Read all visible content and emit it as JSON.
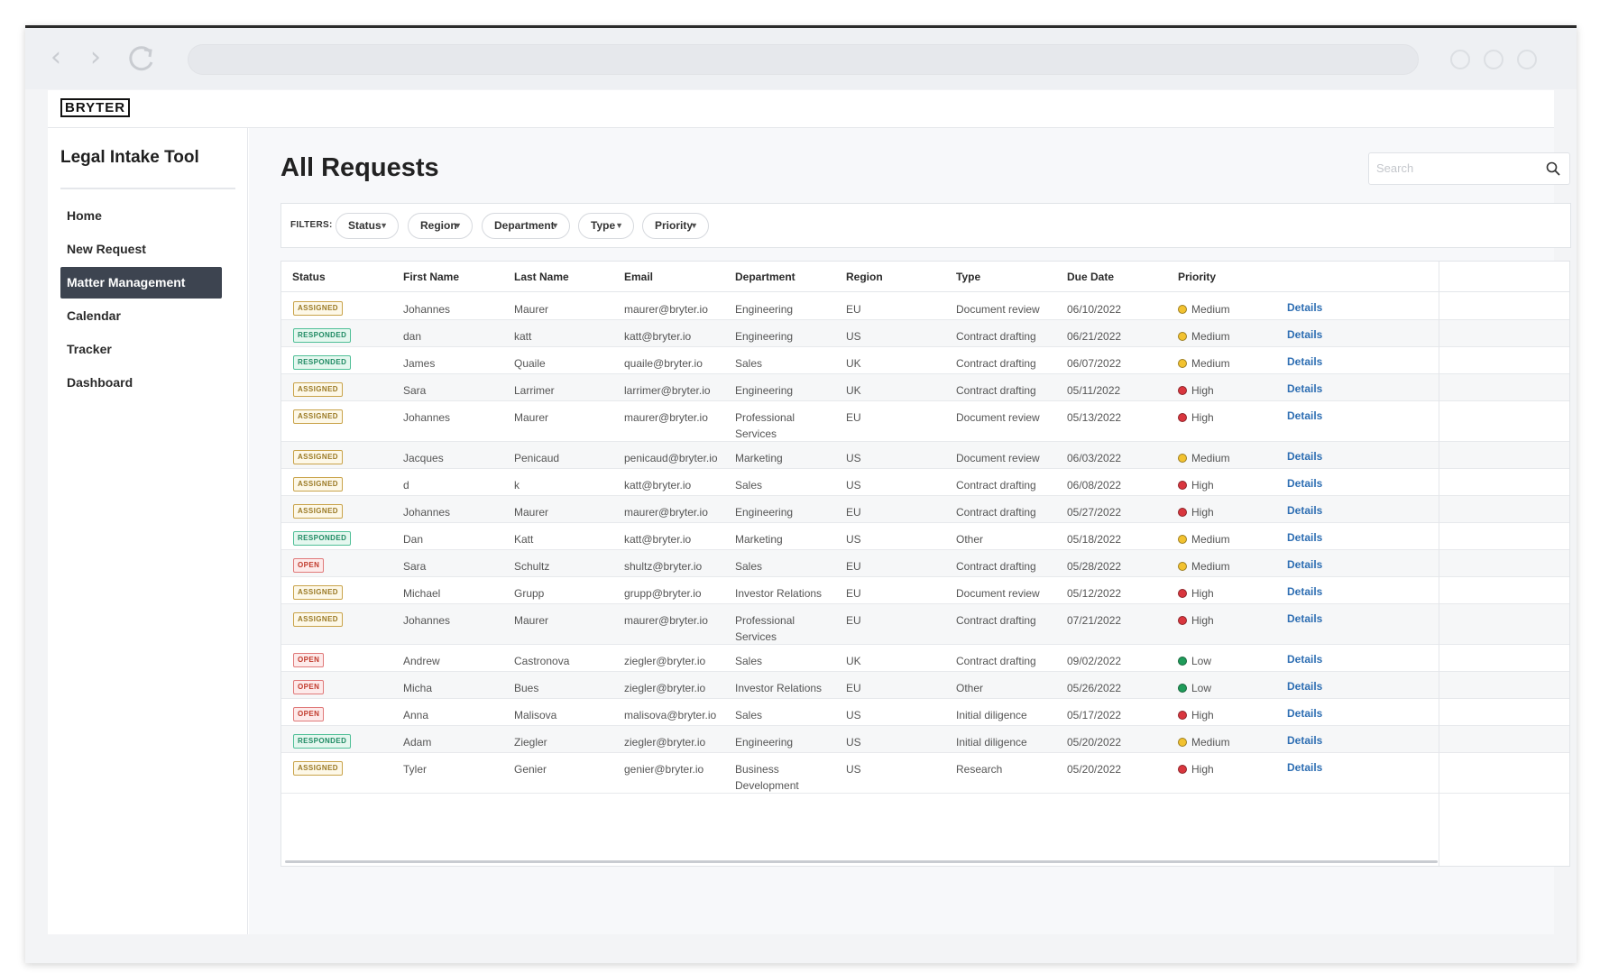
{
  "app": {
    "logo": "BRYTER",
    "title": "Legal Intake Tool"
  },
  "sidebar": {
    "items": [
      {
        "label": "Home",
        "active": false
      },
      {
        "label": "New Request",
        "active": false
      },
      {
        "label": "Matter Management",
        "active": true
      },
      {
        "label": "Calendar",
        "active": false
      },
      {
        "label": "Tracker",
        "active": false
      },
      {
        "label": "Dashboard",
        "active": false
      }
    ]
  },
  "main": {
    "title": "All Requests",
    "search_placeholder": "Search"
  },
  "filters": {
    "label": "FILTERS:",
    "chips": [
      "Status",
      "Region",
      "Department",
      "Type",
      "Priority"
    ]
  },
  "table": {
    "headers": [
      "Status",
      "First Name",
      "Last Name",
      "Email",
      "Department",
      "Region",
      "Type",
      "Due Date",
      "Priority"
    ],
    "details_label": "Details",
    "rows": [
      {
        "status": "ASSIGNED",
        "first": "Johannes",
        "last": "Maurer",
        "email": "maurer@bryter.io",
        "dept": [
          "Engineering"
        ],
        "region": "EU",
        "type": "Document review",
        "due": "06/10/2022",
        "priority": "Medium"
      },
      {
        "status": "RESPONDED",
        "first": "dan",
        "last": "katt",
        "email": "katt@bryter.io",
        "dept": [
          "Engineering"
        ],
        "region": "US",
        "type": "Contract drafting",
        "due": "06/21/2022",
        "priority": "Medium"
      },
      {
        "status": "RESPONDED",
        "first": "James",
        "last": "Quaile",
        "email": "quaile@bryter.io",
        "dept": [
          "Sales"
        ],
        "region": "UK",
        "type": "Contract drafting",
        "due": "06/07/2022",
        "priority": "Medium"
      },
      {
        "status": "ASSIGNED",
        "first": "Sara",
        "last": "Larrimer",
        "email": "larrimer@bryter.io",
        "dept": [
          "Engineering"
        ],
        "region": "UK",
        "type": "Contract drafting",
        "due": "05/11/2022",
        "priority": "High"
      },
      {
        "status": "ASSIGNED",
        "first": "Johannes",
        "last": "Maurer",
        "email": "maurer@bryter.io",
        "dept": [
          "Professional",
          "Services"
        ],
        "region": "EU",
        "type": "Document review",
        "due": "05/13/2022",
        "priority": "High"
      },
      {
        "status": "ASSIGNED",
        "first": "Jacques",
        "last": "Penicaud",
        "email": "penicaud@bryter.io",
        "dept": [
          "Marketing"
        ],
        "region": "US",
        "type": "Document review",
        "due": "06/03/2022",
        "priority": "Medium"
      },
      {
        "status": "ASSIGNED",
        "first": "d",
        "last": "k",
        "email": "katt@bryter.io",
        "dept": [
          "Sales"
        ],
        "region": "US",
        "type": "Contract drafting",
        "due": "06/08/2022",
        "priority": "High"
      },
      {
        "status": "ASSIGNED",
        "first": "Johannes",
        "last": "Maurer",
        "email": "maurer@bryter.io",
        "dept": [
          "Engineering"
        ],
        "region": "EU",
        "type": "Contract drafting",
        "due": "05/27/2022",
        "priority": "High"
      },
      {
        "status": "RESPONDED",
        "first": "Dan",
        "last": "Katt",
        "email": "katt@bryter.io",
        "dept": [
          "Marketing"
        ],
        "region": "US",
        "type": "Other",
        "due": "05/18/2022",
        "priority": "Medium"
      },
      {
        "status": "OPEN",
        "first": "Sara",
        "last": "Schultz",
        "email": "shultz@bryter.io",
        "dept": [
          "Sales"
        ],
        "region": "EU",
        "type": "Contract drafting",
        "due": "05/28/2022",
        "priority": "Medium"
      },
      {
        "status": "ASSIGNED",
        "first": "Michael",
        "last": "Grupp",
        "email": "grupp@bryter.io",
        "dept": [
          "Investor Relations"
        ],
        "region": "EU",
        "type": "Document review",
        "due": "05/12/2022",
        "priority": "High"
      },
      {
        "status": "ASSIGNED",
        "first": "Johannes",
        "last": "Maurer",
        "email": "maurer@bryter.io",
        "dept": [
          "Professional",
          "Services"
        ],
        "region": "EU",
        "type": "Contract drafting",
        "due": "07/21/2022",
        "priority": "High"
      },
      {
        "status": "OPEN",
        "first": "Andrew",
        "last": "Castronova",
        "email": "ziegler@bryter.io",
        "dept": [
          "Sales"
        ],
        "region": "UK",
        "type": "Contract drafting",
        "due": "09/02/2022",
        "priority": "Low"
      },
      {
        "status": "OPEN",
        "first": "Micha",
        "last": "Bues",
        "email": "ziegler@bryter.io",
        "dept": [
          "Investor Relations"
        ],
        "region": "EU",
        "type": "Other",
        "due": "05/26/2022",
        "priority": "Low"
      },
      {
        "status": "OPEN",
        "first": "Anna",
        "last": "Malisova",
        "email": "malisova@bryter.io",
        "dept": [
          "Sales"
        ],
        "region": "US",
        "type": "Initial diligence",
        "due": "05/17/2022",
        "priority": "High"
      },
      {
        "status": "RESPONDED",
        "first": "Adam",
        "last": "Ziegler",
        "email": "ziegler@bryter.io",
        "dept": [
          "Engineering"
        ],
        "region": "US",
        "type": "Initial diligence",
        "due": "05/20/2022",
        "priority": "Medium"
      },
      {
        "status": "ASSIGNED",
        "first": "Tyler",
        "last": "Genier",
        "email": "genier@bryter.io",
        "dept": [
          "Business",
          "Development"
        ],
        "region": "US",
        "type": "Research",
        "due": "05/20/2022",
        "priority": "High"
      }
    ]
  },
  "colors": {
    "priority_medium": "#f2c230",
    "priority_high": "#d9363e",
    "priority_low": "#1f9c5a",
    "sidebar_active_bg": "#3d4450",
    "link": "#2f6fb3"
  }
}
